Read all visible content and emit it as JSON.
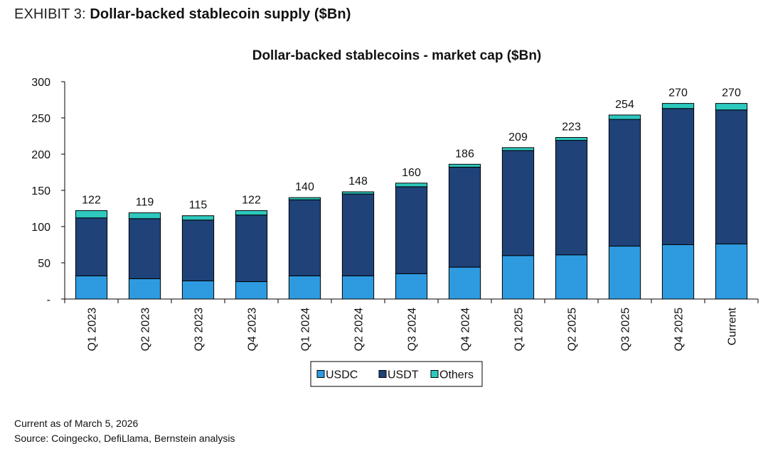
{
  "exhibit": {
    "label": "EXHIBIT 3:",
    "title": "Dollar-backed stablecoin supply ($Bn)"
  },
  "footnotes": {
    "as_of": "Current as of March 5, 2026",
    "source": "Source: Coingecko, DefiLlama, Bernstein analysis"
  },
  "chart_data": {
    "type": "bar",
    "stacked": true,
    "title": "Dollar-backed stablecoins - market cap ($Bn)",
    "xlabel": "",
    "ylabel": "",
    "ylim": [
      0,
      300
    ],
    "yticks": [
      {
        "value": 0,
        "label": "-"
      },
      {
        "value": 50,
        "label": "50"
      },
      {
        "value": 100,
        "label": "100"
      },
      {
        "value": 150,
        "label": "150"
      },
      {
        "value": 200,
        "label": "200"
      },
      {
        "value": 250,
        "label": "250"
      },
      {
        "value": 300,
        "label": "300"
      }
    ],
    "grid": false,
    "legend_position": "bottom",
    "categories": [
      "Q1 2023",
      "Q2 2023",
      "Q3 2023",
      "Q4 2023",
      "Q1 2024",
      "Q2 2024",
      "Q3 2024",
      "Q4 2024",
      "Q1 2025",
      "Q2 2025",
      "Q3 2025",
      "Q4 2025",
      "Current"
    ],
    "series": [
      {
        "name": "USDC",
        "color": "#2e9be0",
        "values": [
          32,
          28,
          25,
          24,
          32,
          32,
          35,
          44,
          60,
          61,
          73,
          75,
          76
        ]
      },
      {
        "name": "USDT",
        "color": "#1f4279",
        "values": [
          80,
          83,
          84,
          92,
          105,
          113,
          120,
          138,
          145,
          158,
          175,
          188,
          185
        ]
      },
      {
        "name": "Others",
        "color": "#2dc9bf",
        "values": [
          10,
          8,
          6,
          6,
          3,
          3,
          5,
          4,
          4,
          4,
          6,
          7,
          9
        ]
      }
    ],
    "totals": [
      "122",
      "119",
      "115",
      "122",
      "140",
      "148",
      "160",
      "186",
      "209",
      "223",
      "254",
      "270",
      "270"
    ]
  }
}
